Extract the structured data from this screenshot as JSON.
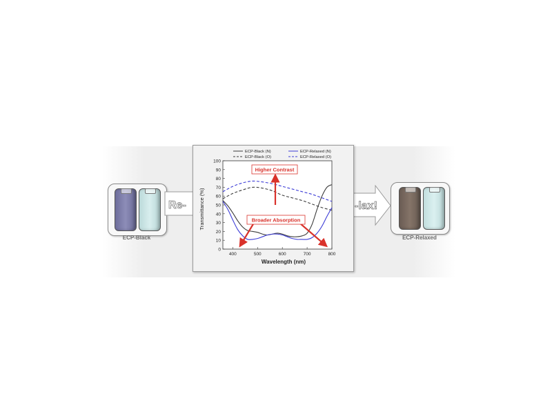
{
  "left_sample": {
    "label": "ECP-Black"
  },
  "right_sample": {
    "label": "ECP-Relaxed"
  },
  "left_arrow_text": "Re-",
  "right_arrow_text": "-lax!",
  "colors": {
    "black_line": "#3a3a3a",
    "blue_line": "#3b3bd6",
    "annotation_red": "#d9322b",
    "film_black": "#7e7ea8",
    "film_light": "#cfe6e6",
    "film_relaxed": "#7a6a60"
  },
  "chart_data": {
    "type": "line",
    "title": "",
    "xlabel": "Wavelength (nm)",
    "ylabel": "Transmittance (%)",
    "xlim": [
      360,
      800
    ],
    "ylim": [
      0,
      100
    ],
    "xticks": [
      400,
      500,
      600,
      700,
      800
    ],
    "yticks": [
      0,
      10,
      20,
      30,
      40,
      50,
      60,
      70,
      80,
      90,
      100
    ],
    "legend_position": "top",
    "series": [
      {
        "name": "ECP-Black (N)",
        "style": "solid",
        "color": "#3a3a3a",
        "x": [
          360,
          380,
          400,
          420,
          440,
          460,
          480,
          500,
          520,
          540,
          560,
          580,
          600,
          620,
          640,
          660,
          680,
          700,
          720,
          740,
          760,
          780,
          800
        ],
        "y": [
          55,
          49,
          41,
          32,
          25,
          21,
          20,
          19,
          17,
          16,
          17,
          18,
          17,
          15,
          14,
          14,
          15,
          18,
          28,
          45,
          60,
          70,
          73
        ]
      },
      {
        "name": "ECP-Black (O)",
        "style": "dashed",
        "color": "#3a3a3a",
        "x": [
          360,
          400,
          440,
          480,
          520,
          560,
          600,
          640,
          680,
          720,
          760,
          800
        ],
        "y": [
          57,
          63,
          67,
          70,
          69,
          66,
          61,
          58,
          55,
          51,
          47,
          44
        ]
      },
      {
        "name": "ECP-Relaxed (N)",
        "style": "solid",
        "color": "#3b3bd6",
        "x": [
          360,
          380,
          400,
          420,
          440,
          460,
          480,
          500,
          520,
          540,
          560,
          580,
          600,
          620,
          640,
          660,
          680,
          700,
          720,
          740,
          760,
          780,
          800
        ],
        "y": [
          54,
          45,
          33,
          22,
          15,
          11,
          11,
          12,
          14,
          16,
          17,
          17,
          16,
          14,
          12,
          11,
          11,
          11,
          13,
          18,
          26,
          37,
          47
        ]
      },
      {
        "name": "ECP-Relaxed (O)",
        "style": "dashed",
        "color": "#3b3bd6",
        "x": [
          360,
          400,
          440,
          480,
          520,
          560,
          600,
          640,
          680,
          720,
          760,
          800
        ],
        "y": [
          65,
          71,
          75,
          77,
          76,
          74,
          71,
          68,
          65,
          62,
          58,
          54
        ]
      }
    ],
    "annotations": [
      {
        "text": "Higher Contrast",
        "color": "#d9322b"
      },
      {
        "text": "Broader Absorption",
        "color": "#d9322b"
      }
    ]
  }
}
